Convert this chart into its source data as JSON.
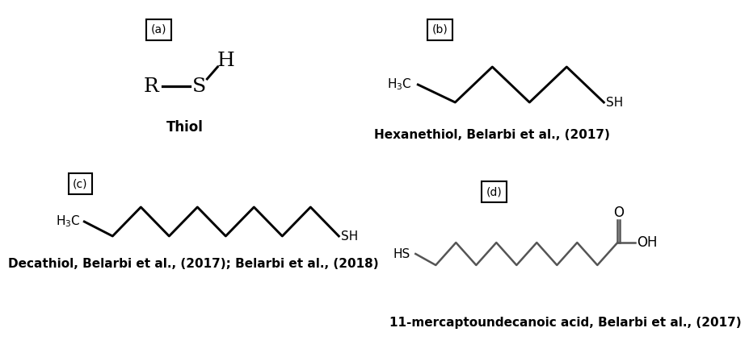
{
  "bg_color": "#ffffff",
  "label_a": "(a)",
  "label_b": "(b)",
  "label_c": "(c)",
  "label_d": "(d)",
  "title_a": "Thiol",
  "title_b": "Hexanethiol, Belarbi et al., (2017)",
  "title_c": "Decathiol, Belarbi et al., (2017); Belarbi et al., (2018)",
  "title_d": "11-mercaptoundecanoic acid, Belarbi et al., (2017)",
  "lw": 1.8,
  "color": "#000000",
  "chain_color": "#555555"
}
